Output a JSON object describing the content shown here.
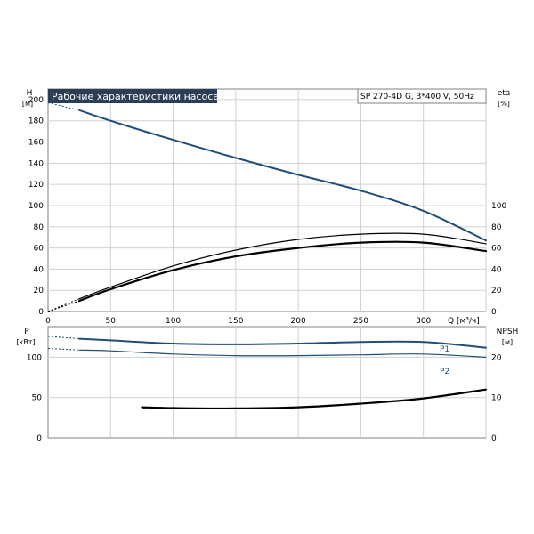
{
  "chart_data": [
    {
      "type": "line",
      "title": "Рабочие характеристики насоса",
      "model_label": "SP 270-4D G, 3*400 V, 50Hz",
      "xlabel": "Q [м³/ч]",
      "ylabel_left": "H",
      "ylabel_left_unit": "[м]",
      "ylabel_right": "eta",
      "ylabel_right_unit": "[%]",
      "xlim": [
        0,
        350
      ],
      "ylim_left": [
        0,
        210
      ],
      "ylim_right": [
        0,
        210
      ],
      "x_ticks": [
        0,
        50,
        100,
        150,
        200,
        250,
        300
      ],
      "y_ticks_left": [
        0,
        20,
        40,
        60,
        80,
        100,
        120,
        140,
        160,
        180,
        200
      ],
      "y_ticks_right": [
        0,
        20,
        40,
        60,
        80,
        100
      ],
      "grid": true,
      "colors": {
        "head": "#1f4e79",
        "eta": "#000000",
        "title_bg": "#2c3e55"
      },
      "series": [
        {
          "x": [
            25,
            50,
            100,
            150,
            200,
            250,
            300,
            350
          ],
          "y": [
            190,
            180,
            162,
            145,
            129,
            114,
            95,
            67
          ],
          "extrapolate_to_x0": 197
        },
        {
          "x": [
            25,
            50,
            100,
            150,
            200,
            250,
            300,
            350
          ],
          "y": [
            12,
            23,
            43,
            58,
            68,
            73,
            73,
            64
          ],
          "extrapolate_to_x0": 0
        },
        {
          "x": [
            25,
            50,
            100,
            150,
            200,
            250,
            300,
            350
          ],
          "y": [
            10,
            21,
            39,
            52,
            60,
            65,
            65,
            57
          ],
          "extrapolate_to_x0": 0
        }
      ]
    },
    {
      "type": "line",
      "ylabel_left": "P",
      "ylabel_left_unit": "[кВт]",
      "ylabel_right": "NPSH",
      "ylabel_right_unit": "[м]",
      "xlim": [
        0,
        350
      ],
      "ylim_left": [
        0,
        138
      ],
      "y_ticks_left": [
        0,
        50,
        100
      ],
      "ylim_right": [
        0,
        27.6
      ],
      "y_ticks_right": [
        0,
        10,
        20
      ],
      "grid": true,
      "colors": {
        "p1": "#1f4e79",
        "p2": "#1f4e79",
        "npsh": "#000000"
      },
      "series": [
        {
          "name": "P1",
          "x": [
            25,
            50,
            100,
            150,
            200,
            250,
            300,
            350
          ],
          "y": [
            123,
            121,
            117,
            116,
            117,
            119,
            119,
            112
          ],
          "extrapolate_to_x0": 126
        },
        {
          "name": "P2",
          "x": [
            25,
            50,
            100,
            150,
            200,
            250,
            300,
            350
          ],
          "y": [
            109,
            108,
            104,
            102,
            102,
            103,
            104,
            100
          ],
          "extrapolate_to_x0": 111
        },
        {
          "axis": "right",
          "x": [
            75,
            100,
            150,
            200,
            250,
            300,
            350
          ],
          "y": [
            7.6,
            7.4,
            7.3,
            7.6,
            8.5,
            9.8,
            12.0
          ]
        }
      ]
    }
  ]
}
